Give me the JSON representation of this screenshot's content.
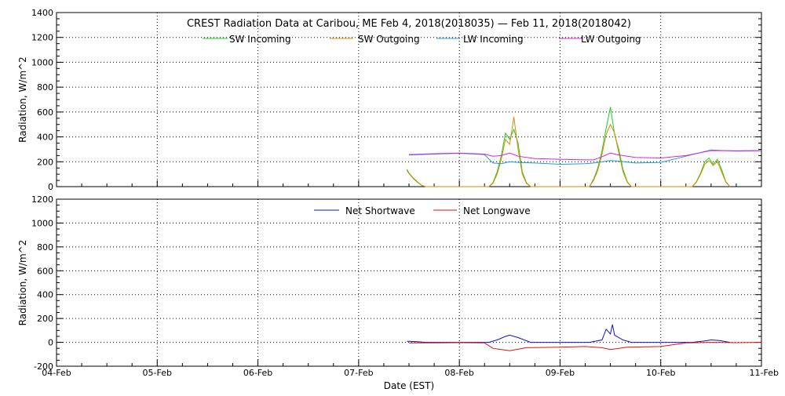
{
  "chart_data": [
    {
      "type": "line",
      "title": "CREST Radiation Data at Caribou, ME   Feb  4, 2018(2018035) — Feb 11, 2018(2018042)",
      "xlabel": "",
      "ylabel": "Radiation, W/m^2",
      "xlim": [
        "2018-02-04",
        "2018-02-11"
      ],
      "ylim": [
        0,
        1400
      ],
      "yticks": [
        "0",
        "200",
        "400",
        "600",
        "800",
        "1000",
        "1200",
        "1400"
      ],
      "grid": true,
      "legend_position": "top",
      "colors": {
        "SW Incoming": "#22cc22",
        "SW Outgoing": "#dd8800",
        "LW Incoming": "#2299dd",
        "LW Outgoing": "#dd22dd"
      },
      "series": [
        {
          "name": "SW Incoming",
          "x": [
            "2018-02-07 11:30",
            "2018-02-07 12:00",
            "2018-02-07 13:00",
            "2018-02-07 14:00",
            "2018-02-07 15:00",
            "2018-02-07 16:00",
            "2018-02-08 07:00",
            "2018-02-08 08:00",
            "2018-02-08 09:00",
            "2018-02-08 10:00",
            "2018-02-08 11:00",
            "2018-02-08 12:00",
            "2018-02-08 13:00",
            "2018-02-08 14:00",
            "2018-02-08 15:00",
            "2018-02-08 16:00",
            "2018-02-08 17:00",
            "2018-02-09 07:00",
            "2018-02-09 08:00",
            "2018-02-09 09:00",
            "2018-02-09 10:00",
            "2018-02-09 11:00",
            "2018-02-09 12:00",
            "2018-02-09 13:00",
            "2018-02-09 14:00",
            "2018-02-09 15:00",
            "2018-02-09 16:00",
            "2018-02-09 17:00",
            "2018-02-10 07:30",
            "2018-02-10 08:30",
            "2018-02-10 09:30",
            "2018-02-10 10:30",
            "2018-02-10 11:30",
            "2018-02-10 12:30",
            "2018-02-10 13:30",
            "2018-02-10 14:30",
            "2018-02-10 15:30",
            "2018-02-10 16:30"
          ],
          "y": [
            140,
            110,
            70,
            40,
            10,
            0,
            0,
            30,
            120,
            250,
            430,
            380,
            460,
            350,
            120,
            30,
            0,
            0,
            60,
            150,
            290,
            470,
            640,
            420,
            300,
            140,
            40,
            0,
            0,
            40,
            110,
            200,
            230,
            180,
            220,
            140,
            40,
            0
          ]
        },
        {
          "name": "SW Outgoing",
          "x": [
            "2018-02-07 11:30",
            "2018-02-07 12:00",
            "2018-02-07 13:00",
            "2018-02-07 14:00",
            "2018-02-07 15:00",
            "2018-02-07 16:00",
            "2018-02-08 07:00",
            "2018-02-08 08:00",
            "2018-02-08 09:00",
            "2018-02-08 10:00",
            "2018-02-08 11:00",
            "2018-02-08 12:00",
            "2018-02-08 13:00",
            "2018-02-08 14:00",
            "2018-02-08 15:00",
            "2018-02-08 16:00",
            "2018-02-08 17:00",
            "2018-02-09 07:00",
            "2018-02-09 08:00",
            "2018-02-09 09:00",
            "2018-02-09 10:00",
            "2018-02-09 11:00",
            "2018-02-09 12:00",
            "2018-02-09 13:00",
            "2018-02-09 14:00",
            "2018-02-09 15:00",
            "2018-02-09 16:00",
            "2018-02-09 17:00",
            "2018-02-10 07:30",
            "2018-02-10 08:30",
            "2018-02-10 09:30",
            "2018-02-10 10:30",
            "2018-02-10 11:30",
            "2018-02-10 12:30",
            "2018-02-10 13:30",
            "2018-02-10 14:30",
            "2018-02-10 15:30",
            "2018-02-10 16:30"
          ],
          "y": [
            130,
            105,
            65,
            35,
            10,
            0,
            0,
            25,
            100,
            220,
            380,
            340,
            560,
            300,
            100,
            25,
            0,
            0,
            50,
            130,
            260,
            420,
            500,
            430,
            270,
            120,
            35,
            0,
            0,
            35,
            100,
            180,
            210,
            170,
            200,
            120,
            35,
            0
          ]
        },
        {
          "name": "LW Incoming",
          "x": [
            "2018-02-07 12:00",
            "2018-02-07 18:00",
            "2018-02-08 00:00",
            "2018-02-08 06:00",
            "2018-02-08 08:00",
            "2018-02-08 10:00",
            "2018-02-08 12:00",
            "2018-02-08 14:00",
            "2018-02-08 18:00",
            "2018-02-09 00:00",
            "2018-02-09 06:00",
            "2018-02-09 08:00",
            "2018-02-09 10:00",
            "2018-02-09 12:00",
            "2018-02-09 14:00",
            "2018-02-09 18:00",
            "2018-02-10 00:00",
            "2018-02-10 06:00",
            "2018-02-10 12:00",
            "2018-02-10 18:00",
            "2018-02-11 00:00"
          ],
          "y": [
            255,
            262,
            268,
            258,
            190,
            185,
            200,
            195,
            190,
            180,
            185,
            190,
            200,
            210,
            205,
            190,
            195,
            245,
            295,
            285,
            288
          ]
        },
        {
          "name": "LW Outgoing",
          "x": [
            "2018-02-07 12:00",
            "2018-02-07 18:00",
            "2018-02-08 00:00",
            "2018-02-08 06:00",
            "2018-02-08 08:00",
            "2018-02-08 10:00",
            "2018-02-08 12:00",
            "2018-02-08 14:00",
            "2018-02-08 18:00",
            "2018-02-09 00:00",
            "2018-02-09 06:00",
            "2018-02-09 08:00",
            "2018-02-09 10:00",
            "2018-02-09 12:00",
            "2018-02-09 14:00",
            "2018-02-09 18:00",
            "2018-02-10 00:00",
            "2018-02-10 06:00",
            "2018-02-10 12:00",
            "2018-02-10 18:00",
            "2018-02-11 00:00"
          ],
          "y": [
            258,
            265,
            270,
            262,
            245,
            250,
            270,
            245,
            225,
            220,
            215,
            215,
            240,
            270,
            255,
            235,
            230,
            250,
            290,
            288,
            290
          ]
        }
      ]
    },
    {
      "type": "line",
      "title": "",
      "xlabel": "Date (EST)",
      "ylabel": "Radiation, W/m^2",
      "xlim": [
        "2018-02-04",
        "2018-02-11"
      ],
      "ylim": [
        -200,
        1200
      ],
      "yticks": [
        "-200",
        "0",
        "200",
        "400",
        "600",
        "800",
        "1000",
        "1200"
      ],
      "xticks": [
        "04-Feb",
        "05-Feb",
        "06-Feb",
        "07-Feb",
        "08-Feb",
        "09-Feb",
        "10-Feb",
        "11-Feb"
      ],
      "grid": true,
      "legend_position": "top",
      "colors": {
        "Net Shortwave": "#1111cc",
        "Net Longwave": "#dd1111"
      },
      "series": [
        {
          "name": "Net Shortwave",
          "x": [
            "2018-02-07 11:30",
            "2018-02-07 14:00",
            "2018-02-07 16:00",
            "2018-02-08 07:00",
            "2018-02-08 09:00",
            "2018-02-08 11:00",
            "2018-02-08 12:00",
            "2018-02-08 14:00",
            "2018-02-08 17:00",
            "2018-02-09 07:00",
            "2018-02-09 10:00",
            "2018-02-09 11:00",
            "2018-02-09 12:00",
            "2018-02-09 12:30",
            "2018-02-09 13:00",
            "2018-02-09 15:00",
            "2018-02-09 17:00",
            "2018-02-10 07:30",
            "2018-02-10 10:00",
            "2018-02-10 12:00",
            "2018-02-10 14:00",
            "2018-02-10 16:30"
          ],
          "y": [
            10,
            5,
            0,
            0,
            20,
            50,
            60,
            40,
            0,
            0,
            20,
            110,
            70,
            150,
            60,
            20,
            0,
            0,
            10,
            20,
            15,
            0
          ]
        },
        {
          "name": "Net Longwave",
          "x": [
            "2018-02-07 12:00",
            "2018-02-07 18:00",
            "2018-02-08 00:00",
            "2018-02-08 06:00",
            "2018-02-08 08:00",
            "2018-02-08 12:00",
            "2018-02-08 16:00",
            "2018-02-09 00:00",
            "2018-02-09 06:00",
            "2018-02-09 10:00",
            "2018-02-09 12:00",
            "2018-02-09 16:00",
            "2018-02-10 00:00",
            "2018-02-10 06:00",
            "2018-02-10 12:00",
            "2018-02-10 18:00",
            "2018-02-11 00:00"
          ],
          "y": [
            -5,
            -5,
            -3,
            -5,
            -50,
            -70,
            -45,
            -40,
            -35,
            -45,
            -60,
            -40,
            -35,
            -5,
            0,
            -3,
            0
          ]
        }
      ]
    }
  ]
}
